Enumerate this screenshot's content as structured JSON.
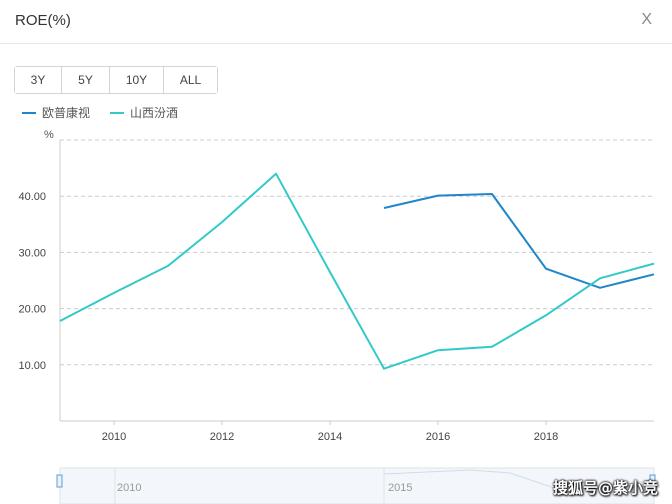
{
  "header": {
    "title": "ROE(%)",
    "close_label": "X"
  },
  "range_buttons": [
    "3Y",
    "5Y",
    "10Y",
    "ALL"
  ],
  "legend": [
    {
      "label": "欧普康视",
      "color": "#1f86c9"
    },
    {
      "label": "山西汾酒",
      "color": "#33c9c9"
    }
  ],
  "watermark": "搜狐号@紫小竞",
  "chart_data": {
    "type": "line",
    "ylabel": "%",
    "ylim": [
      0,
      50
    ],
    "yticks": [
      "10.00",
      "20.00",
      "30.00",
      "40.00"
    ],
    "xlim": [
      2009,
      2020
    ],
    "xticks": [
      "2010",
      "2012",
      "2014",
      "2016",
      "2018"
    ],
    "grid": true,
    "legend_position": "top-left",
    "series": [
      {
        "name": "欧普康视",
        "color": "#1f86c9",
        "x": [
          2015,
          2016,
          2017,
          2018,
          2019,
          2020
        ],
        "y": [
          37.9,
          40.1,
          40.4,
          27.1,
          23.7,
          26.1
        ]
      },
      {
        "name": "山西汾酒",
        "color": "#33c9c9",
        "x": [
          2009,
          2010,
          2011,
          2012,
          2013,
          2014,
          2015,
          2016,
          2017,
          2018,
          2019,
          2020
        ],
        "y": [
          17.8,
          22.8,
          27.6,
          35.4,
          44.0,
          26.5,
          9.3,
          12.6,
          13.2,
          18.8,
          25.4,
          28.0
        ]
      }
    ],
    "navigator": {
      "labels": [
        "2010",
        "2015"
      ]
    }
  }
}
